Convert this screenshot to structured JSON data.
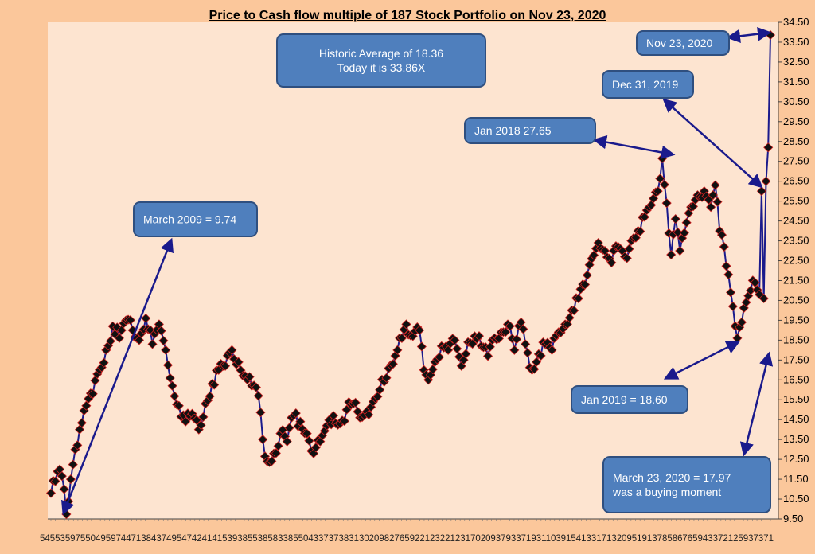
{
  "chart_data": {
    "type": "line",
    "title": "Price to Cash flow multiple of 187 Stock Portfolio on Nov 23, 2020",
    "xlabel": "",
    "ylabel": "",
    "ylim": [
      9.5,
      34.5
    ],
    "ytick_step": 1.0,
    "x_axis_labels": "5455359755049597447138437495474241415393855385833855043373738313020982765922123221231702093793371931103915413317132095191378586765943372125937371",
    "grid": false,
    "axis_position": "right",
    "background": "#fde4d0",
    "line_color": "#1a1a8c",
    "marker_color": "#111111",
    "marker_edge": "#cc2222",
    "anchors": [
      [
        0,
        10.8
      ],
      [
        2,
        11.4
      ],
      [
        4,
        12.0
      ],
      [
        6,
        11.0
      ],
      [
        7,
        9.74
      ],
      [
        9,
        11.5
      ],
      [
        11,
        13.0
      ],
      [
        13,
        14.0
      ],
      [
        16,
        15.2
      ],
      [
        19,
        15.8
      ],
      [
        22,
        17.0
      ],
      [
        25,
        18.0
      ],
      [
        28,
        19.2
      ],
      [
        31,
        18.6
      ],
      [
        34,
        19.5
      ],
      [
        37,
        19.0
      ],
      [
        40,
        18.5
      ],
      [
        43,
        19.6
      ],
      [
        46,
        18.3
      ],
      [
        49,
        19.3
      ],
      [
        52,
        18.0
      ],
      [
        55,
        16.2
      ],
      [
        58,
        15.2
      ],
      [
        61,
        14.4
      ],
      [
        64,
        14.8
      ],
      [
        67,
        14.0
      ],
      [
        70,
        15.3
      ],
      [
        73,
        16.3
      ],
      [
        76,
        17.0
      ],
      [
        79,
        17.2
      ],
      [
        82,
        18.0
      ],
      [
        85,
        17.4
      ],
      [
        88,
        16.7
      ],
      [
        91,
        16.2
      ],
      [
        94,
        15.7
      ],
      [
        96,
        13.5
      ],
      [
        98,
        12.4
      ],
      [
        101,
        12.8
      ],
      [
        104,
        13.8
      ],
      [
        107,
        13.4
      ],
      [
        110,
        14.7
      ],
      [
        113,
        14.4
      ],
      [
        116,
        13.8
      ],
      [
        119,
        12.8
      ],
      [
        122,
        13.4
      ],
      [
        125,
        14.2
      ],
      [
        128,
        14.7
      ],
      [
        131,
        14.3
      ],
      [
        134,
        15.0
      ],
      [
        137,
        15.3
      ],
      [
        140,
        14.6
      ],
      [
        143,
        14.9
      ],
      [
        146,
        15.4
      ],
      [
        149,
        16.0
      ],
      [
        152,
        16.6
      ],
      [
        155,
        17.3
      ],
      [
        158,
        18.6
      ],
      [
        161,
        19.3
      ],
      [
        164,
        18.7
      ],
      [
        167,
        19.0
      ],
      [
        169,
        17.0
      ],
      [
        171,
        16.5
      ],
      [
        174,
        17.4
      ],
      [
        177,
        18.2
      ],
      [
        180,
        18.0
      ],
      [
        183,
        18.5
      ],
      [
        186,
        17.2
      ],
      [
        189,
        18.4
      ],
      [
        192,
        18.7
      ],
      [
        195,
        18.2
      ],
      [
        198,
        17.7
      ],
      [
        201,
        18.6
      ],
      [
        204,
        18.9
      ],
      [
        207,
        19.3
      ],
      [
        210,
        18.0
      ],
      [
        213,
        19.4
      ],
      [
        215,
        18.3
      ],
      [
        218,
        17.0
      ],
      [
        221,
        17.8
      ],
      [
        224,
        18.3
      ],
      [
        227,
        18.0
      ],
      [
        230,
        18.9
      ],
      [
        233,
        19.3
      ],
      [
        236,
        20.0
      ],
      [
        239,
        20.6
      ],
      [
        242,
        21.3
      ],
      [
        245,
        22.6
      ],
      [
        248,
        23.4
      ],
      [
        251,
        23.0
      ],
      [
        254,
        22.4
      ],
      [
        257,
        23.2
      ],
      [
        260,
        22.7
      ],
      [
        263,
        23.5
      ],
      [
        266,
        24.0
      ],
      [
        269,
        24.7
      ],
      [
        272,
        25.3
      ],
      [
        275,
        26.0
      ],
      [
        277,
        27.65
      ],
      [
        279,
        25.4
      ],
      [
        281,
        22.8
      ],
      [
        283,
        24.6
      ],
      [
        285,
        23.0
      ],
      [
        287,
        23.9
      ],
      [
        290,
        25.2
      ],
      [
        293,
        25.8
      ],
      [
        296,
        26.0
      ],
      [
        299,
        25.2
      ],
      [
        301,
        26.3
      ],
      [
        303,
        24.0
      ],
      [
        305,
        23.2
      ],
      [
        307,
        21.8
      ],
      [
        309,
        20.2
      ],
      [
        311,
        18.6
      ],
      [
        313,
        19.4
      ],
      [
        315,
        20.4
      ],
      [
        317,
        21.0
      ],
      [
        319,
        21.4
      ],
      [
        321,
        20.8
      ],
      [
        322,
        26.0
      ],
      [
        323,
        20.6
      ],
      [
        324,
        26.5
      ],
      [
        325,
        28.2
      ],
      [
        326,
        33.86
      ]
    ],
    "callouts": [
      {
        "text": [
          "Historic Average of 18.36",
          "Today it is 33.86X"
        ]
      },
      {
        "text": [
          "March 2009 = 9.74"
        ]
      },
      {
        "text": [
          "Jan 2018  27.65"
        ]
      },
      {
        "text": [
          "Dec 31, 2019"
        ]
      },
      {
        "text": [
          "Nov 23, 2020"
        ]
      },
      {
        "text": [
          "Jan 2019 = 18.60"
        ]
      },
      {
        "text": [
          "March 23, 2020 = 17.97",
          "was a buying moment"
        ]
      }
    ]
  }
}
